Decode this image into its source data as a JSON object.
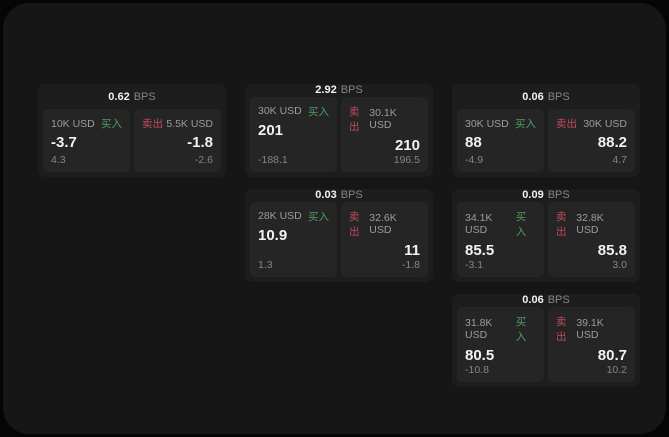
{
  "labels": {
    "buy": "买入",
    "sell": "卖出",
    "bps_suffix": "BPS"
  },
  "colors": {
    "outer_bg": "#050505",
    "page_bg": "#161616",
    "card_bg": "#1d1d1d",
    "panel_bg": "#252525",
    "text_primary": "#f2f2f2",
    "text_secondary": "#9c9c9c",
    "text_tertiary": "#858585",
    "buy_green": "#4f9e63",
    "sell_red": "#c2495d"
  },
  "cards": [
    {
      "row": 1,
      "col": 1,
      "bps": "0.62",
      "buy": {
        "amount": "10K USD",
        "value": "-3.7",
        "delta": "4.3"
      },
      "sell": {
        "amount": "5.5K USD",
        "value": "-1.8",
        "delta": "-2.6"
      }
    },
    {
      "row": 1,
      "col": 2,
      "bps": "2.92",
      "buy": {
        "amount": "30K USD",
        "value": "201",
        "delta": "-188.1"
      },
      "sell": {
        "amount": "30.1K USD",
        "value": "210",
        "delta": "196.5"
      }
    },
    {
      "row": 1,
      "col": 3,
      "bps": "0.06",
      "buy": {
        "amount": "30K USD",
        "value": "88",
        "delta": "-4.9"
      },
      "sell": {
        "amount": "30K USD",
        "value": "88.2",
        "delta": "4.7"
      }
    },
    {
      "row": 2,
      "col": 2,
      "bps": "0.03",
      "buy": {
        "amount": "28K USD",
        "value": "10.9",
        "delta": "1.3"
      },
      "sell": {
        "amount": "32.6K USD",
        "value": "11",
        "delta": "-1.8"
      }
    },
    {
      "row": 2,
      "col": 3,
      "bps": "0.09",
      "buy": {
        "amount": "34.1K USD",
        "value": "85.5",
        "delta": "-3.1"
      },
      "sell": {
        "amount": "32.8K USD",
        "value": "85.8",
        "delta": "3.0"
      }
    },
    {
      "row": 3,
      "col": 3,
      "bps": "0.06",
      "buy": {
        "amount": "31.8K USD",
        "value": "80.5",
        "delta": "-10.8"
      },
      "sell": {
        "amount": "39.1K USD",
        "value": "80.7",
        "delta": "10.2"
      }
    }
  ]
}
